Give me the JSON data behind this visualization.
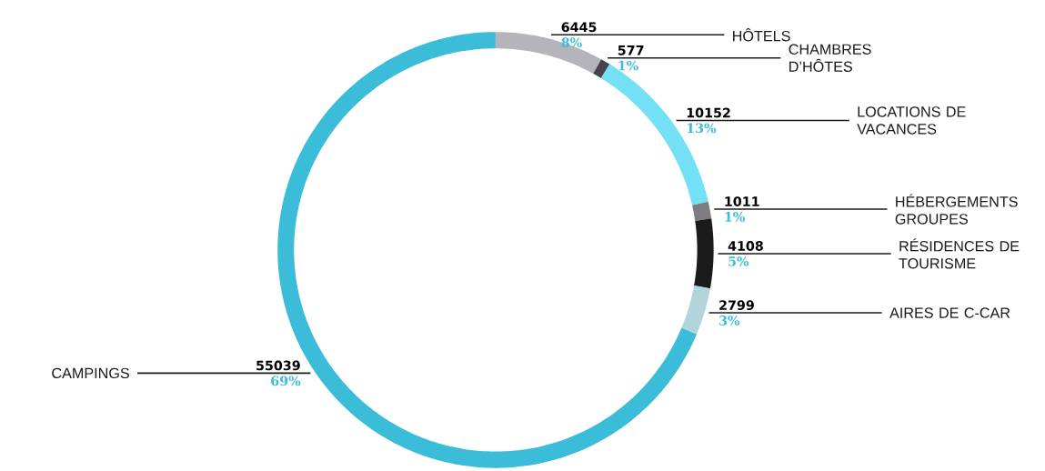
{
  "chart_data": {
    "type": "donut",
    "categories": [
      "HÔTELS",
      "CHAMBRES D’HÔTES",
      "LOCATIONS DE VACANCES",
      "HÉBERGEMENTS GROUPES",
      "RÉSIDENCES DE TOURISME",
      "AIRES DE C-CAR",
      "CAMPINGS"
    ],
    "values": [
      6445,
      577,
      10152,
      1011,
      4108,
      2799,
      55039
    ],
    "colors": [
      "#b5b4ba",
      "#45434f",
      "#74e0f5",
      "#7d7c82",
      "#1b1b1b",
      "#b2d4da",
      "#3bbcd8"
    ],
    "data_labels": true,
    "annotations": [
      {
        "text": "8%",
        "x": "HÔTELS"
      },
      {
        "text": "1%",
        "x": "CHAMBRES D’HÔTES"
      },
      {
        "text": "13%",
        "x": "LOCATIONS DE VACANCES"
      },
      {
        "text": "1%",
        "x": "HÉBERGEMENTS GROUPES"
      },
      {
        "text": "5%",
        "x": "RÉSIDENCES DE TOURISME"
      },
      {
        "text": "3%",
        "x": "AIRES DE C-CAR"
      },
      {
        "text": "69%",
        "x": "CAMPINGS"
      }
    ]
  }
}
